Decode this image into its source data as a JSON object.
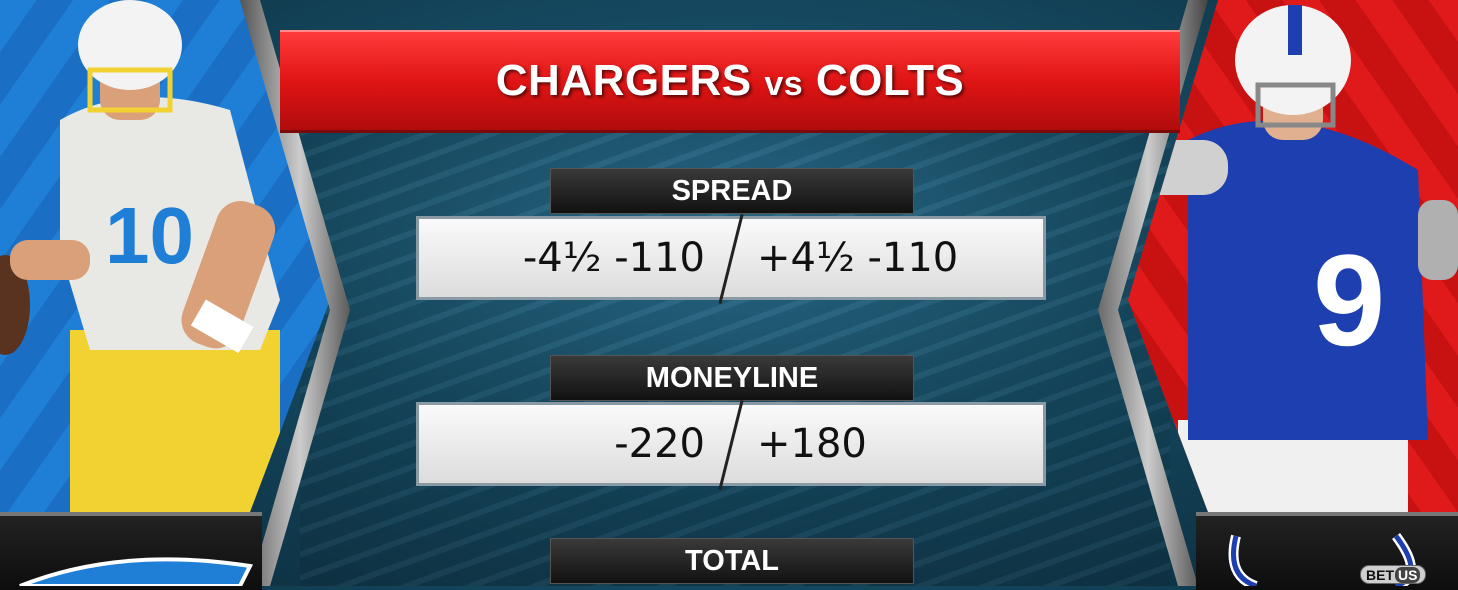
{
  "title": {
    "team_a": "CHARGERS",
    "vs": "vs",
    "team_b": "COLTS"
  },
  "spread": {
    "label": "SPREAD",
    "team_a": "-4½ -110",
    "team_b": "+4½ -110"
  },
  "moneyline": {
    "label": "MONEYLINE",
    "team_a": "-220",
    "team_b": "+180"
  },
  "total": {
    "label": "TOTAL"
  },
  "players": {
    "left_jersey_number": "10",
    "right_jersey_number": "9"
  },
  "sponsor": {
    "logo_text_a": "BET",
    "logo_text_b": "US"
  },
  "colors": {
    "chargers_blue": "#1f7fd6",
    "colts_red": "#e01a1a",
    "title_red": "#e01414",
    "chargers_yellow": "#f2d230",
    "colts_blue": "#1e3fb0"
  }
}
